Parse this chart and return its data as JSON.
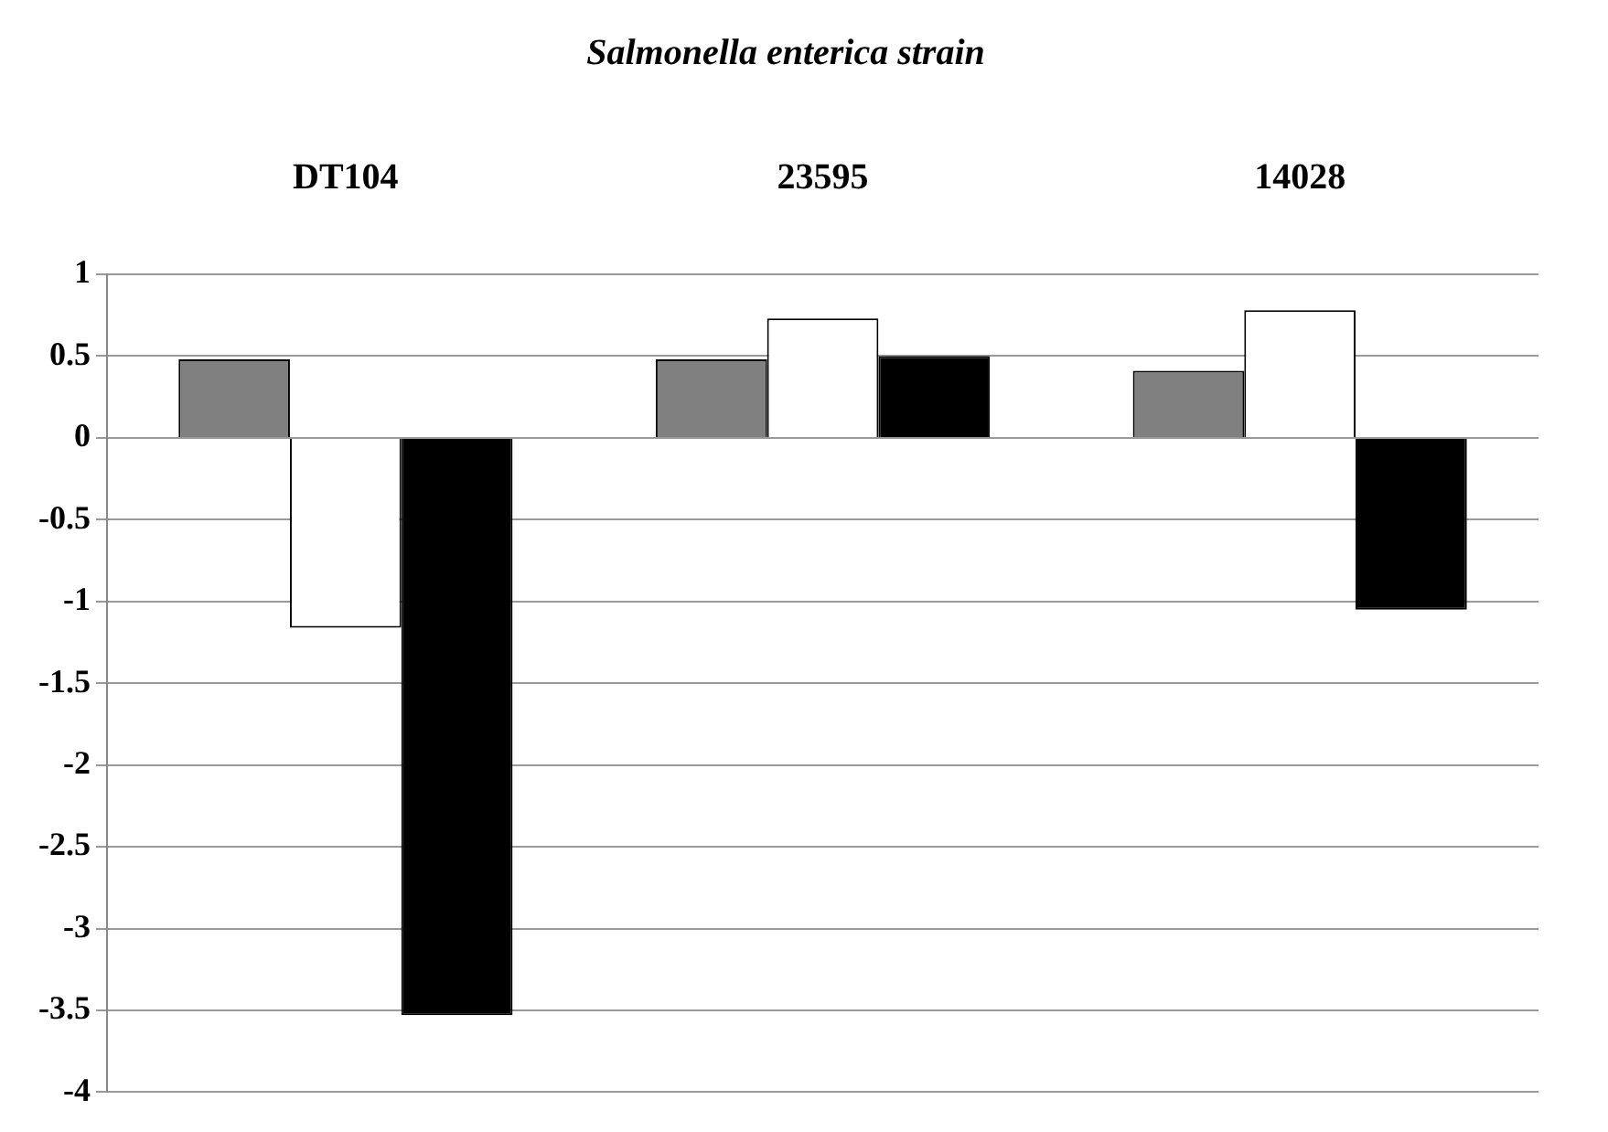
{
  "chart_data": {
    "type": "bar",
    "title": "Salmonella enterica strain",
    "categories": [
      "DT104",
      "23595",
      "14028"
    ],
    "series": [
      {
        "color": "#808080",
        "values": [
          0.48,
          0.48,
          0.41
        ]
      },
      {
        "color": "#ffffff",
        "values": [
          -1.16,
          0.73,
          0.78
        ]
      },
      {
        "color": "#000000",
        "values": [
          -3.53,
          0.5,
          -1.05
        ]
      }
    ],
    "ylim": [
      -4,
      1
    ],
    "yticks": [
      -4,
      -3.5,
      -3,
      -2.5,
      -2,
      -1.5,
      -1,
      -0.5,
      0,
      0.5,
      1
    ],
    "grid": "y",
    "legend": false
  }
}
